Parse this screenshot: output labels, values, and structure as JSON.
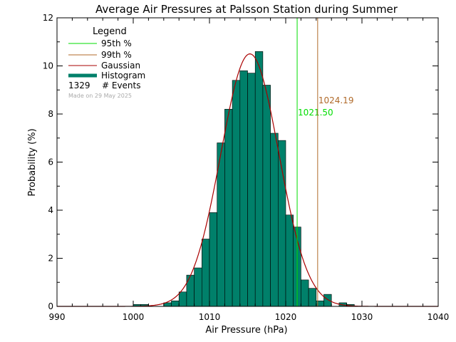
{
  "chart_data": {
    "type": "bar",
    "title": "Average Air Pressures at Palsson Station during Summer",
    "xlabel": "Air Pressure (hPa)",
    "ylabel": "Probability (%)",
    "xlim": [
      990,
      1040
    ],
    "ylim": [
      0,
      12
    ],
    "xticks": [
      990,
      1000,
      1010,
      1020,
      1030,
      1040
    ],
    "yticks": [
      0,
      2,
      4,
      6,
      8,
      10,
      12
    ],
    "bin_width": 1,
    "bins": [
      {
        "x": 1000,
        "value": 0.08
      },
      {
        "x": 1001,
        "value": 0.08
      },
      {
        "x": 1004,
        "value": 0.15
      },
      {
        "x": 1005,
        "value": 0.23
      },
      {
        "x": 1006,
        "value": 0.6
      },
      {
        "x": 1007,
        "value": 1.3
      },
      {
        "x": 1008,
        "value": 1.6
      },
      {
        "x": 1009,
        "value": 2.8
      },
      {
        "x": 1010,
        "value": 3.9
      },
      {
        "x": 1011,
        "value": 6.8
      },
      {
        "x": 1012,
        "value": 8.2
      },
      {
        "x": 1013,
        "value": 9.4
      },
      {
        "x": 1014,
        "value": 9.8
      },
      {
        "x": 1015,
        "value": 9.7
      },
      {
        "x": 1016,
        "value": 10.6
      },
      {
        "x": 1017,
        "value": 9.2
      },
      {
        "x": 1018,
        "value": 7.2
      },
      {
        "x": 1019,
        "value": 6.9
      },
      {
        "x": 1020,
        "value": 3.8
      },
      {
        "x": 1021,
        "value": 3.3
      },
      {
        "x": 1022,
        "value": 1.1
      },
      {
        "x": 1023,
        "value": 0.75
      },
      {
        "x": 1024,
        "value": 0.23
      },
      {
        "x": 1025,
        "value": 0.5
      },
      {
        "x": 1027,
        "value": 0.15
      },
      {
        "x": 1028,
        "value": 0.08
      }
    ],
    "gaussian": {
      "mean": 1015.3,
      "sigma": 3.8,
      "peak": 10.5
    },
    "percentiles": [
      {
        "name": "95th %",
        "value": 1021.5,
        "label": "1021.50",
        "color": "#00dd00"
      },
      {
        "name": "99th %",
        "value": 1024.19,
        "label": "1024.19",
        "color": "#b06a2a"
      }
    ],
    "legend": {
      "title": "Legend",
      "placement": "top-left",
      "entries": [
        {
          "label": "95th %",
          "color": "#00dd00"
        },
        {
          "label": "99th %",
          "color": "#b06a2a"
        },
        {
          "label": "Gaussian",
          "color": "#aa0000"
        },
        {
          "label": "Histogram",
          "color": "#00806a"
        }
      ],
      "events_count": "1329",
      "events_label": "# Events",
      "made_on": "Made on 29 May 2025"
    },
    "colors": {
      "histogram_fill": "#00806a",
      "gaussian": "#aa0000",
      "axes": "#000000",
      "made_on_text": "#aaaaaa"
    }
  }
}
